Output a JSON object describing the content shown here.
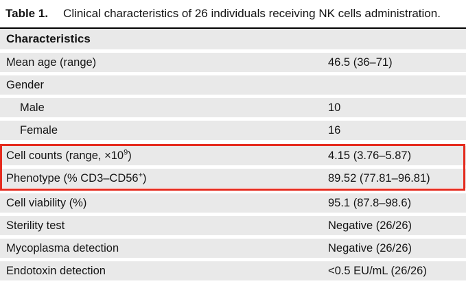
{
  "title": {
    "label": "Table 1.",
    "text": "Clinical characteristics of 26 individuals receiving NK cells administration."
  },
  "table": {
    "header": "Characteristics",
    "rows": [
      {
        "label": "Mean age (range)",
        "value": "46.5 (36–71)"
      },
      {
        "label": "Gender",
        "value": ""
      },
      {
        "label": "Male",
        "value": "10",
        "indent": true
      },
      {
        "label": "Female",
        "value": "16",
        "indent": true
      },
      {
        "label_pre": "Cell counts (range, ×10",
        "label_sup": "9",
        "label_post": ")",
        "value": "4.15 (3.76–5.87)",
        "highlighted": true
      },
      {
        "label_pre": "Phenotype (% CD3–CD56",
        "label_sup": "+",
        "label_post": ")",
        "value": "89.52 (77.81–96.81)",
        "highlighted": true
      },
      {
        "label": "Cell viability (%)",
        "value": "95.1 (87.8–98.6)"
      },
      {
        "label": "Sterility test",
        "value": "Negative (26/26)"
      },
      {
        "label": "Mycoplasma detection",
        "value": "Negative (26/26)"
      },
      {
        "label": "Endotoxin detection",
        "value": "<0.5 EU/mL (26/26)"
      }
    ]
  },
  "colors": {
    "row_background": "#e9e9e9",
    "highlight_border": "#e52b1e",
    "top_rule": "#000000",
    "text": "#141414"
  }
}
